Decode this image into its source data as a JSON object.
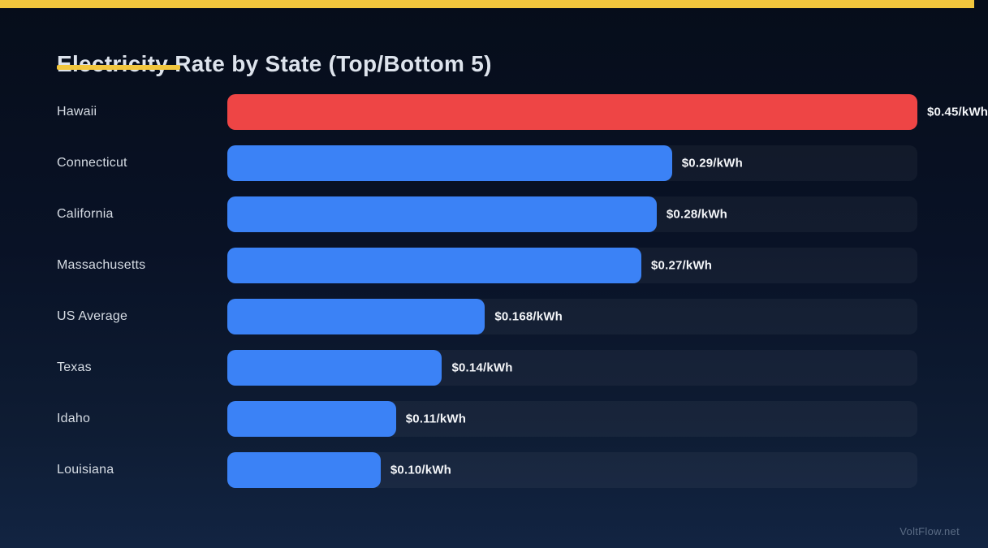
{
  "page": {
    "title": "Electricity Rate by State (Top/Bottom 5)",
    "watermark": "VoltFlow.net"
  },
  "colors": {
    "accent_yellow": "#f2c63d",
    "bar_blue": "#3b82f6",
    "bar_red": "#ee4545",
    "background_top": "#060d1a",
    "background_bottom": "#122442",
    "track": "rgba(255,255,255,0.045)"
  },
  "chart_data": {
    "type": "bar",
    "orientation": "horizontal",
    "title": "Electricity Rate by State (Top/Bottom 5)",
    "unit": "$/kWh",
    "xlim": [
      0,
      0.45
    ],
    "grid": false,
    "legend": false,
    "categories": [
      "Hawaii",
      "Connecticut",
      "California",
      "Massachusetts",
      "US Average",
      "Texas",
      "Idaho",
      "Louisiana"
    ],
    "values": [
      0.45,
      0.29,
      0.28,
      0.27,
      0.168,
      0.14,
      0.11,
      0.1
    ],
    "value_labels": [
      "$0.45/kWh",
      "$0.29/kWh",
      "$0.28/kWh",
      "$0.27/kWh",
      "$0.168/kWh",
      "$0.14/kWh",
      "$0.11/kWh",
      "$0.10/kWh"
    ],
    "bar_colors": [
      "#ee4545",
      "#3b82f6",
      "#3b82f6",
      "#3b82f6",
      "#3b82f6",
      "#3b82f6",
      "#3b82f6",
      "#3b82f6"
    ],
    "highlighted_category": "Hawaii"
  }
}
